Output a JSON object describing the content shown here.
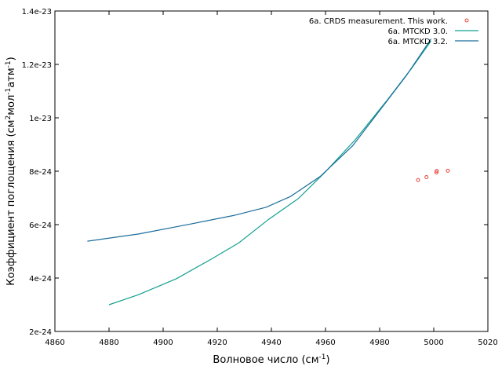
{
  "chart_data": {
    "type": "line",
    "xlabel": "Волновое число (см",
    "xlabel_sup": "-1",
    "xlabel_end": ")",
    "ylabel_parts": [
      "Коэффициент поглощения (см",
      "2",
      "мол",
      "-1",
      "атм",
      "-1",
      ")"
    ],
    "xlim": [
      4860,
      5020
    ],
    "ylim": [
      2e-24,
      1.4e-23
    ],
    "x_ticks": [
      4860,
      4880,
      4900,
      4920,
      4940,
      4960,
      4980,
      5000,
      5020
    ],
    "y_ticks": [
      {
        "value": 2e-24,
        "label": "2e-24"
      },
      {
        "value": 4e-24,
        "label": "4e-24"
      },
      {
        "value": 6e-24,
        "label": "6e-24"
      },
      {
        "value": 8e-24,
        "label": "8e-24"
      },
      {
        "value": 1e-23,
        "label": "1e-23"
      },
      {
        "value": 1.2e-23,
        "label": "1.2e-23"
      },
      {
        "value": 1.4e-23,
        "label": "1.4e-23"
      }
    ],
    "legend_position": "top-right",
    "series": [
      {
        "name": "6a. CRDS measurement. This work.",
        "kind": "scatter",
        "color": "#e8463f",
        "x": [
          4994.2,
          4997.3,
          5001.0,
          5001.1,
          5005.2
        ],
        "y": [
          7.67e-24,
          7.78e-24,
          7.95e-24,
          8.01e-24,
          8.02e-24
        ]
      },
      {
        "name": "6a. MTCKD 3.0.",
        "kind": "line",
        "color": "#13a090",
        "x": [
          4880,
          4891,
          4905,
          4918,
          4928,
          4939,
          4950,
          4960,
          4971,
          4983,
          4992,
          4999
        ],
        "y": [
          3e-24,
          3.38e-24,
          3.98e-24,
          4.72e-24,
          5.32e-24,
          6.2e-24,
          6.98e-24,
          7.98e-24,
          9.18e-24,
          1.069e-23,
          1.188e-23,
          1.288e-23
        ]
      },
      {
        "name": "6a. MTCKD 3.2.",
        "kind": "line",
        "color": "#1b6d9c",
        "x": [
          4872,
          4891,
          4910,
          4926,
          4938,
          4947,
          4958,
          4970,
          4980,
          4990,
          4999
        ],
        "y": [
          5.38e-24,
          5.65e-24,
          6.02e-24,
          6.34e-24,
          6.65e-24,
          7.05e-24,
          7.8e-24,
          8.95e-24,
          1.027e-23,
          1.16e-23,
          1.295e-23
        ]
      }
    ]
  }
}
